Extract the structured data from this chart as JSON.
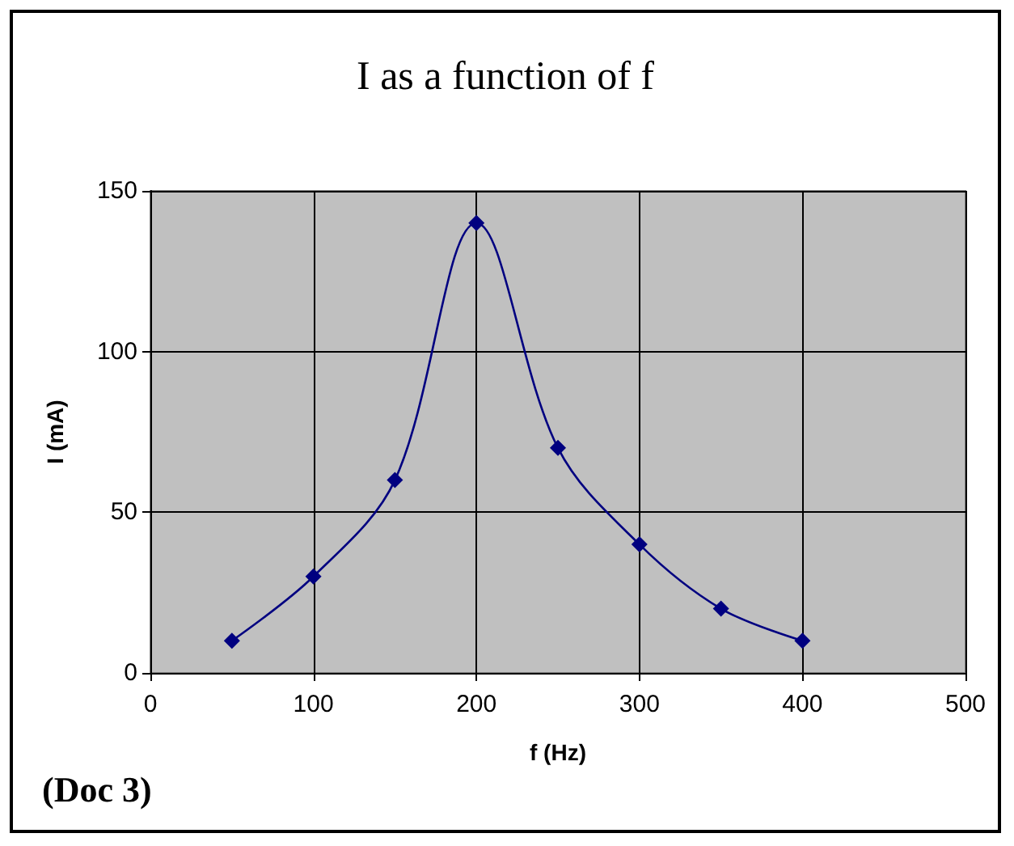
{
  "chart_data": {
    "type": "line",
    "title": "I as a function of f",
    "xlabel": "f (Hz)",
    "ylabel": "I (mA)",
    "x": [
      50,
      100,
      150,
      200,
      250,
      300,
      350,
      400
    ],
    "series": [
      {
        "color": "#000080",
        "values": [
          10,
          30,
          60,
          140,
          70,
          40,
          20,
          10
        ]
      }
    ],
    "xlim": [
      0,
      500
    ],
    "xticks": [
      0,
      100,
      200,
      300,
      400,
      500
    ],
    "ylim": [
      0,
      150
    ],
    "yticks": [
      0,
      50,
      100,
      150
    ],
    "grid": true,
    "marker": "diamond",
    "line_style": "solid",
    "annotations": [
      "(Doc 3)"
    ]
  }
}
